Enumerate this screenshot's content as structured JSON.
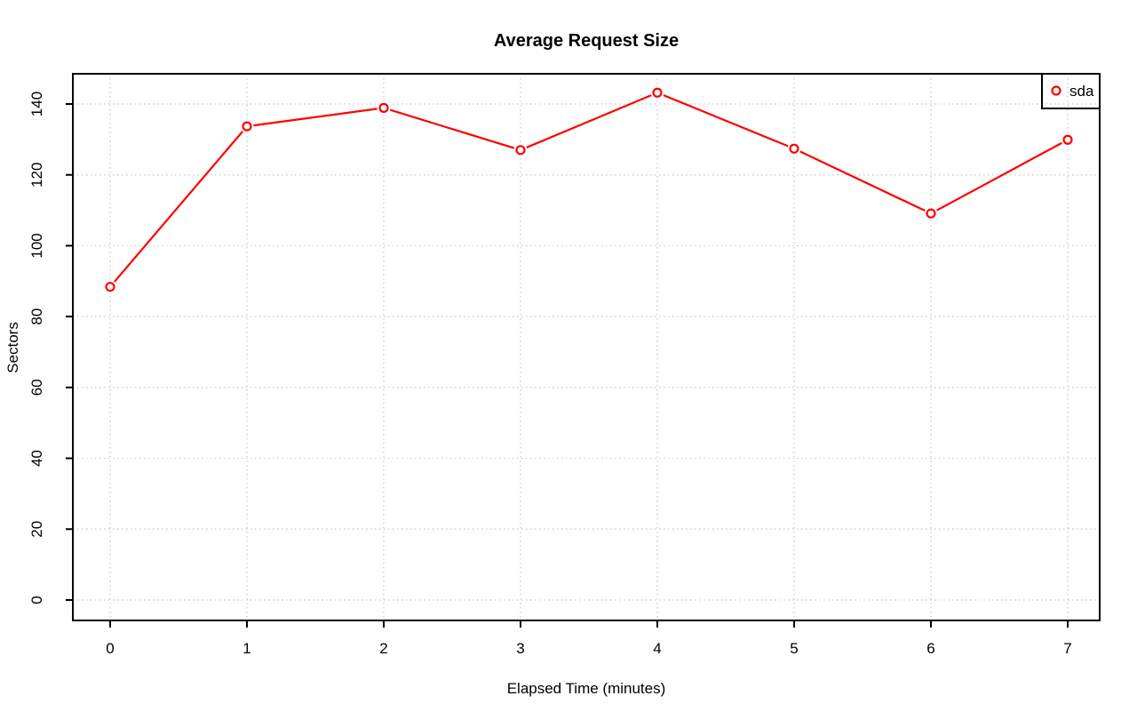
{
  "chart_data": {
    "type": "line",
    "title": "Average Request Size",
    "xlabel": "Elapsed Time (minutes)",
    "ylabel": "Sectors",
    "x": [
      0,
      1,
      2,
      3,
      4,
      5,
      6,
      7
    ],
    "series": [
      {
        "name": "sda",
        "color": "#FF0000",
        "marker": "open-circle",
        "values": [
          88.4,
          133.7,
          138.9,
          127.0,
          143.2,
          127.4,
          109.1,
          129.9
        ]
      }
    ],
    "xticks": [
      0,
      1,
      2,
      3,
      4,
      5,
      6,
      7
    ],
    "yticks": [
      0,
      20,
      40,
      60,
      80,
      100,
      120,
      140
    ],
    "xlim": [
      -0.28,
      7.24
    ],
    "ylim": [
      -5.8,
      148.8
    ],
    "grid": true,
    "grid_style": "dotted",
    "grid_color": "#C8C8C8",
    "axis_color": "#000000",
    "background": "#FFFFFF",
    "legend": {
      "position": "top-right",
      "entries": [
        "sda"
      ]
    }
  }
}
